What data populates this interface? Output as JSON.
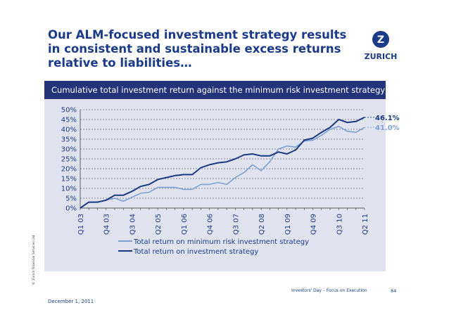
{
  "slide": {
    "title_lines": [
      "Our ALM-focused investment strategy results",
      "in consistent and sustainable excess returns",
      "relative to liabilities…"
    ],
    "logo_text": "ZURICH",
    "logo_mark": "Z",
    "banner_text": "Cumulative total investment return against the minimum risk investment strategy",
    "copyright": "© Zurich Financial Services Ltd",
    "footer_date": "December 1, 2011",
    "footer_event": "Investors' Day – Focus on Execution",
    "page_number": "84"
  },
  "colors": {
    "brand_blue": "#1b3b8a",
    "banner_bg": "#24347a",
    "plot_bg": "#e0e3ee",
    "investment_line": "#1a3880",
    "min_risk_line": "#7da0d4"
  },
  "chart_data": {
    "type": "line",
    "title": "Cumulative total investment return against the minimum risk investment strategy",
    "ylim": [
      0,
      50
    ],
    "y_ticks": [
      "50%",
      "45%",
      "40%",
      "35%",
      "30%",
      "25%",
      "20%",
      "15%",
      "10%",
      "5%",
      "0%"
    ],
    "x_tick_labels": [
      "Q1 03",
      "Q4 03",
      "Q3 04",
      "Q2 05",
      "Q1 06",
      "Q4 06",
      "Q3 07",
      "Q2 08",
      "Q1 09",
      "Q4 09",
      "Q3 10",
      "Q2 11"
    ],
    "x": [
      "Q1 03",
      "Q2 03",
      "Q3 03",
      "Q4 03",
      "Q1 04",
      "Q2 04",
      "Q3 04",
      "Q4 04",
      "Q1 05",
      "Q2 05",
      "Q3 05",
      "Q4 05",
      "Q1 06",
      "Q2 06",
      "Q3 06",
      "Q4 06",
      "Q1 07",
      "Q2 07",
      "Q3 07",
      "Q4 07",
      "Q1 08",
      "Q2 08",
      "Q3 08",
      "Q4 08",
      "Q1 09",
      "Q2 09",
      "Q3 09",
      "Q4 09",
      "Q1 10",
      "Q2 10",
      "Q3 10",
      "Q4 10",
      "Q1 11",
      "Q2 11"
    ],
    "series": [
      {
        "name": "Total return on minimum risk investment strategy",
        "end_label": "41.0%",
        "values": [
          0,
          3,
          3,
          4,
          5,
          3.5,
          5.5,
          7.5,
          8,
          10.5,
          10.5,
          10.5,
          9.5,
          9.5,
          12,
          12,
          13,
          12,
          15.5,
          18,
          22,
          19,
          23.5,
          30,
          31.5,
          31,
          34,
          34.5,
          37,
          40,
          41.5,
          39,
          38.5,
          41
        ]
      },
      {
        "name": "Total return on investment strategy",
        "end_label": "46.1%",
        "values": [
          0,
          3,
          3,
          4,
          6.5,
          6.5,
          8.5,
          11,
          12,
          14.5,
          15.5,
          16.5,
          17,
          17,
          20.5,
          22,
          23,
          23.5,
          25,
          27,
          27.5,
          26.5,
          26.5,
          28.5,
          27.5,
          29.5,
          34.5,
          35.5,
          38.5,
          41,
          45,
          43.5,
          44,
          46.1
        ]
      }
    ],
    "legend_position": "bottom"
  }
}
